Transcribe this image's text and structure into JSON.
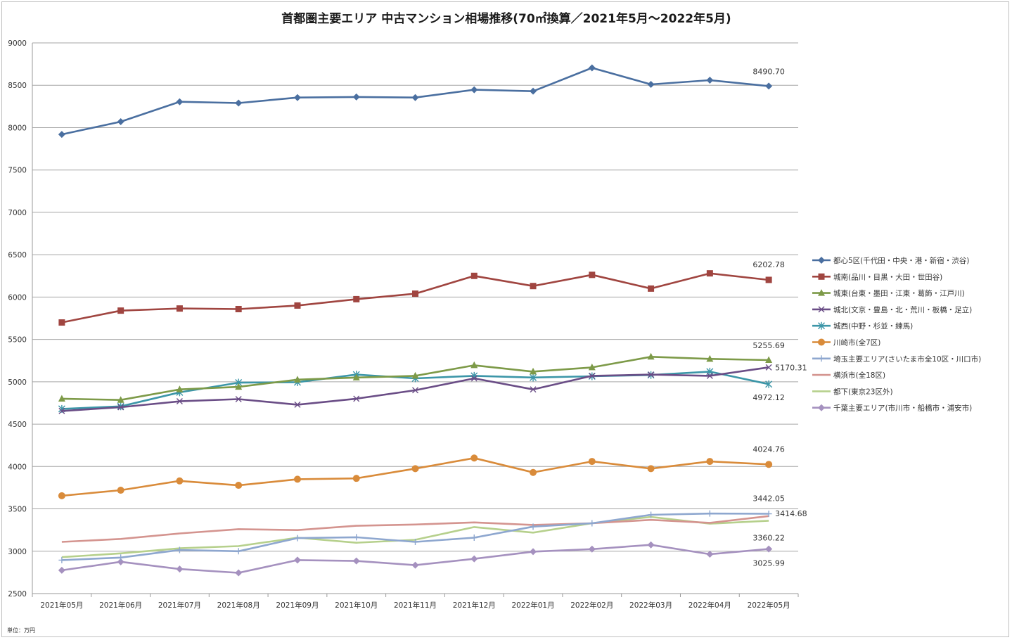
{
  "chart_data": {
    "type": "line",
    "title": "首都圏主要エリア 中古マンション相場推移(70㎡換算／2021年5月～2022年5月)",
    "unit_note": "単位：万円",
    "ylim": [
      2500,
      9000
    ],
    "yticks": [
      2500,
      3000,
      3500,
      4000,
      4500,
      5000,
      5500,
      6000,
      6500,
      7000,
      7500,
      8000,
      8500,
      9000
    ],
    "grid": true,
    "legend_position": "right",
    "categories": [
      "2021年05月",
      "2021年06月",
      "2021年07月",
      "2021年08月",
      "2021年09月",
      "2021年10月",
      "2021年11月",
      "2021年12月",
      "2022年01月",
      "2022年02月",
      "2022年03月",
      "2022年04月",
      "2022年05月"
    ],
    "series": [
      {
        "name": "都心5区(千代田・中央・港・新宿・渋谷)",
        "color": "#4a6fa0",
        "marker": "diamond",
        "values": [
          7920,
          8070,
          8305,
          8290,
          8355,
          8362,
          8355,
          8447,
          8430,
          8705,
          8510,
          8560,
          8490.7
        ]
      },
      {
        "name": "城南(品川・目黒・大田・世田谷)",
        "color": "#a04540",
        "marker": "square",
        "values": [
          5700,
          5840,
          5865,
          5858,
          5900,
          5975,
          6040,
          6250,
          6130,
          6262,
          6100,
          6280,
          6202.78
        ]
      },
      {
        "name": "城東(台東・墨田・江東・葛飾・江戸川)",
        "color": "#7d9a48",
        "marker": "triangle",
        "values": [
          4800,
          4785,
          4910,
          4940,
          5025,
          5050,
          5070,
          5195,
          5120,
          5170,
          5295,
          5270,
          5255.69
        ]
      },
      {
        "name": "城北(文京・豊島・北・荒川・板橋・足立)",
        "color": "#6a4d86",
        "marker": "x",
        "values": [
          4655,
          4700,
          4770,
          4795,
          4730,
          4800,
          4900,
          5040,
          4910,
          5070,
          5085,
          5070,
          5170.31
        ]
      },
      {
        "name": "城西(中野・杉並・練馬)",
        "color": "#3c96a8",
        "marker": "star",
        "values": [
          4680,
          4710,
          4875,
          4990,
          4995,
          5085,
          5040,
          5070,
          5050,
          5065,
          5080,
          5120,
          4972.12
        ]
      },
      {
        "name": "川崎市(全7区)",
        "color": "#d98b3a",
        "marker": "circle",
        "values": [
          3655,
          3720,
          3830,
          3778,
          3850,
          3860,
          3975,
          4100,
          3930,
          4060,
          3975,
          4060,
          4024.76
        ]
      },
      {
        "name": "埼玉主要エリア(さいたま市全10区・川口市)",
        "color": "#8ea7cf",
        "marker": "plus",
        "values": [
          2895,
          2925,
          3015,
          3000,
          3155,
          3165,
          3110,
          3160,
          3290,
          3330,
          3430,
          3445,
          3442.05
        ]
      },
      {
        "name": "横浜市(全18区)",
        "color": "#d4948f",
        "marker": "none",
        "values": [
          3110,
          3145,
          3210,
          3260,
          3250,
          3300,
          3315,
          3340,
          3310,
          3330,
          3370,
          3335,
          3414.68
        ]
      },
      {
        "name": "都下(東京23区外)",
        "color": "#b6d08c",
        "marker": "none",
        "values": [
          2930,
          2975,
          3035,
          3060,
          3160,
          3100,
          3135,
          3285,
          3220,
          3330,
          3405,
          3325,
          3360.22
        ]
      },
      {
        "name": "千葉主要エリア(市川市・船橋市・浦安市)",
        "color": "#a591bf",
        "marker": "diamond",
        "values": [
          2775,
          2875,
          2790,
          2745,
          2895,
          2885,
          2835,
          2910,
          2995,
          3025,
          3075,
          2965,
          3025.99
        ]
      }
    ],
    "data_labels": [
      "8490.70",
      "6202.78",
      "5255.69",
      "5170.31",
      "4972.12",
      "4024.76",
      "3442.05",
      "3414.68",
      "3360.22",
      "3025.99"
    ]
  }
}
